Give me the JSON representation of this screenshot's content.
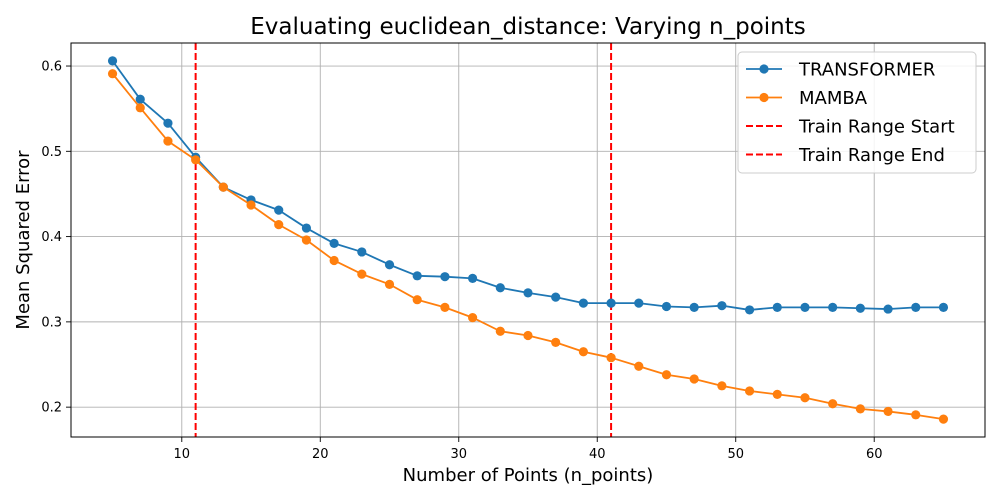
{
  "chart_data": {
    "type": "line",
    "title": "Evaluating euclidean_distance: Varying n_points",
    "xlabel": "Number of Points (n_points)",
    "ylabel": "Mean Squared Error",
    "xlim": [
      2,
      68
    ],
    "ylim": [
      0.165,
      0.627
    ],
    "xticks": [
      10,
      20,
      30,
      40,
      50,
      60
    ],
    "yticks": [
      0.2,
      0.3,
      0.4,
      0.5,
      0.6
    ],
    "grid": true,
    "legend_position": "top-right",
    "x": [
      5,
      7,
      9,
      11,
      13,
      15,
      17,
      19,
      21,
      23,
      25,
      27,
      29,
      31,
      33,
      35,
      37,
      39,
      41,
      43,
      45,
      47,
      49,
      51,
      53,
      55,
      57,
      59,
      61,
      63,
      65
    ],
    "series": [
      {
        "name": "TRANSFORMER",
        "color": "#1f77b4",
        "values": [
          0.606,
          0.561,
          0.533,
          0.493,
          0.458,
          0.443,
          0.431,
          0.41,
          0.392,
          0.382,
          0.367,
          0.354,
          0.353,
          0.351,
          0.34,
          0.334,
          0.329,
          0.322,
          0.322,
          0.322,
          0.318,
          0.317,
          0.319,
          0.314,
          0.317,
          0.317,
          0.317,
          0.316,
          0.315,
          0.317,
          0.317
        ]
      },
      {
        "name": "MAMBA",
        "color": "#ff7f0e",
        "values": [
          0.591,
          0.551,
          0.512,
          0.49,
          0.458,
          0.437,
          0.414,
          0.396,
          0.372,
          0.356,
          0.344,
          0.326,
          0.317,
          0.305,
          0.289,
          0.284,
          0.276,
          0.265,
          0.258,
          0.248,
          0.238,
          0.233,
          0.225,
          0.219,
          0.215,
          0.211,
          0.204,
          0.198,
          0.195,
          0.191,
          0.186
        ]
      }
    ],
    "vlines": [
      {
        "name": "Train Range Start",
        "x": 11,
        "color": "#ff0000"
      },
      {
        "name": "Train Range End",
        "x": 41,
        "color": "#ff0000"
      }
    ]
  }
}
